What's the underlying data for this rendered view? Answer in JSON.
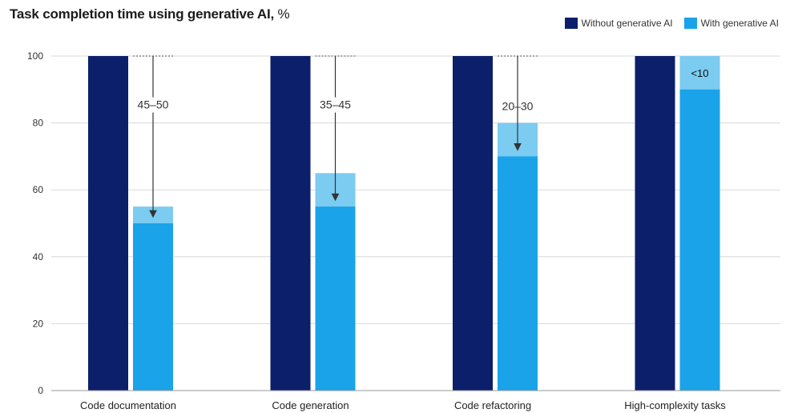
{
  "chart_data": {
    "type": "bar",
    "title": "Task completion time using generative AI,",
    "title_unit": "%",
    "ylim": [
      0,
      100
    ],
    "yticks": [
      0,
      20,
      40,
      60,
      80,
      100
    ],
    "categories": [
      "Code documentation",
      "Code generation",
      "Code refactoring",
      "High-complexity tasks"
    ],
    "series": [
      {
        "name": "Without generative AI",
        "color": "#0b1f6b",
        "values": [
          100,
          100,
          100,
          100
        ]
      },
      {
        "name": "With generative AI",
        "color": "#1aa3e8",
        "values": [
          50,
          55,
          70,
          90
        ]
      },
      {
        "name": "",
        "color": "#7ccbf1",
        "values": [
          55,
          65,
          80,
          100
        ]
      }
    ],
    "range_labels": [
      "45–50",
      "35–45",
      "20–30",
      "<10"
    ],
    "grid": true,
    "legend_position": "top-right"
  }
}
